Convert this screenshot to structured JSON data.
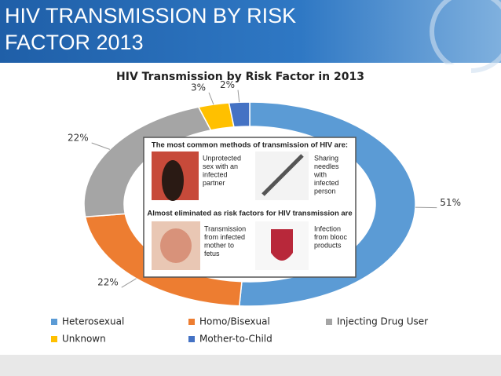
{
  "header": {
    "title_lines": [
      "HIV TRANSMISSION BY RISK",
      "FACTOR 2013"
    ]
  },
  "chart_data": {
    "type": "donut",
    "title": "HIV Transmission by Risk Factor in 2013",
    "categories": [
      "Heterosexual",
      "Homo/Bisexual",
      "Injecting Drug User",
      "Unknown",
      "Mother-to-Child"
    ],
    "values": [
      51,
      22,
      22,
      3,
      2
    ],
    "value_labels": [
      "51%",
      "22%",
      "22%",
      "3%",
      "2%"
    ],
    "colors": [
      "#5b9bd5",
      "#ed7d31",
      "#a5a5a5",
      "#ffc000",
      "#4472c4"
    ],
    "legend": "bottom",
    "annotations": {
      "heading1": "The most common methods of transmission of HIV are:",
      "item1": [
        "Unprotected",
        "sex with an",
        "infected",
        "partner"
      ],
      "item2": [
        "Sharing",
        "needles",
        "with",
        "infected",
        "person"
      ],
      "heading2": "Almost eliminated as risk factors for HIV transmission are",
      "item3": [
        "Transmission",
        "from infected",
        "mother to",
        "fetus"
      ],
      "item4": [
        "Infection",
        "from blooc",
        "products"
      ]
    }
  }
}
